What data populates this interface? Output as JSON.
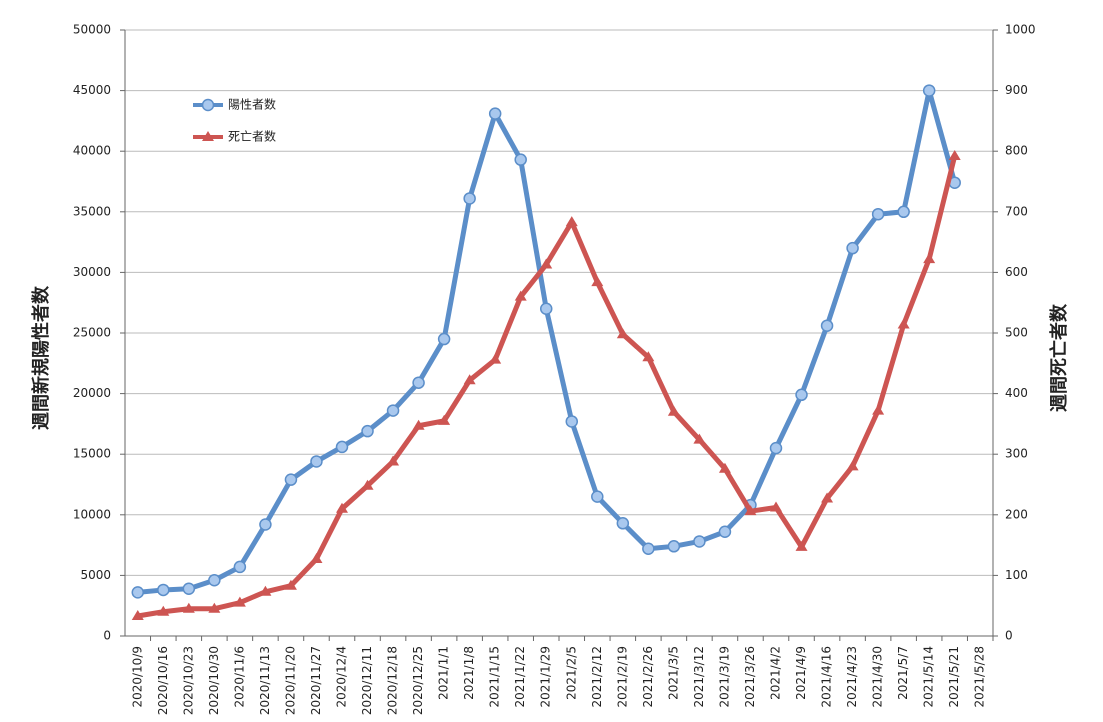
{
  "chart_data": {
    "type": "line",
    "categories": [
      "2020/10/9",
      "2020/10/16",
      "2020/10/23",
      "2020/10/30",
      "2020/11/6",
      "2020/11/13",
      "2020/11/20",
      "2020/11/27",
      "2020/12/4",
      "2020/12/11",
      "2020/12/18",
      "2020/12/25",
      "2021/1/1",
      "2021/1/8",
      "2021/1/15",
      "2021/1/22",
      "2021/1/29",
      "2021/2/5",
      "2021/2/12",
      "2021/2/19",
      "2021/2/26",
      "2021/3/5",
      "2021/3/12",
      "2021/3/19",
      "2021/3/26",
      "2021/4/2",
      "2021/4/9",
      "2021/4/16",
      "2021/4/23",
      "2021/4/30",
      "2021/5/7",
      "2021/5/14",
      "2021/5/21",
      "2021/5/28"
    ],
    "series": [
      {
        "name": "陽性者数",
        "color": "#5b8ec9",
        "marker": "circle",
        "values": [
          3600,
          3800,
          3900,
          4600,
          5700,
          9200,
          12900,
          14400,
          15600,
          16900,
          18600,
          20900,
          24500,
          36100,
          43100,
          39300,
          27000,
          17700,
          11500,
          9300,
          7200,
          7400,
          7800,
          8600,
          10800,
          15500,
          19900,
          25600,
          32000,
          34800,
          35000,
          45000,
          37400,
          null
        ]
      },
      {
        "name": "死亡者数",
        "color": "#cd5552",
        "marker": "triangle",
        "axis": "y2",
        "values": [
          33,
          40,
          45,
          45,
          55,
          73,
          83,
          127,
          210,
          248,
          288,
          347,
          355,
          422,
          456,
          560,
          613,
          683,
          584,
          498,
          460,
          370,
          324,
          276,
          206,
          212,
          147,
          227,
          280,
          372,
          514,
          622,
          792,
          null
        ]
      }
    ],
    "ylabel": "週間新規陽性者数",
    "y2label": "週間死亡者数",
    "ylim": [
      0,
      50000
    ],
    "yticks": [
      0,
      5000,
      10000,
      15000,
      20000,
      25000,
      30000,
      35000,
      40000,
      45000,
      50000
    ],
    "y2lim": [
      0,
      1000
    ],
    "y2ticks": [
      0,
      100,
      200,
      300,
      400,
      500,
      600,
      700,
      800,
      900,
      1000
    ],
    "grid": true,
    "legend": "upper left"
  }
}
